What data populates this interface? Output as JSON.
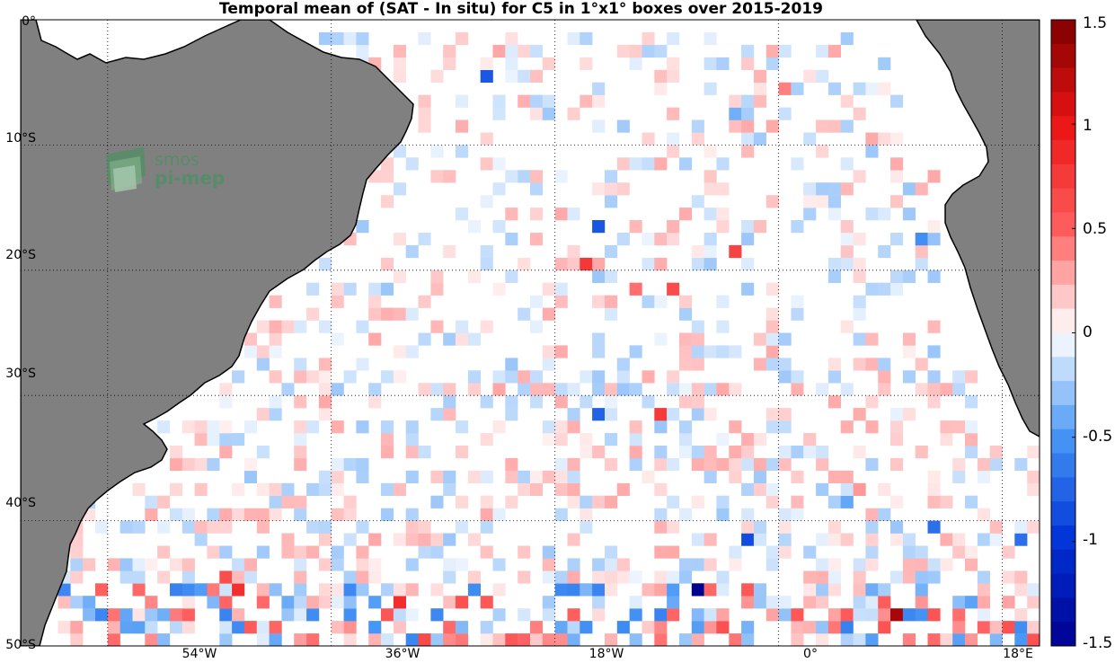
{
  "title": "Temporal mean of (SAT - In situ) for C5 in 1°x1° boxes over 2015-2019",
  "logo_text": [
    "smos",
    "pi-mep"
  ],
  "map": {
    "lon_range": [
      -61,
      21
    ],
    "lat_range": [
      -50,
      0
    ],
    "lat_ticks": [
      {
        "value": 0,
        "label": "0°"
      },
      {
        "value": -10,
        "label": "10°S"
      },
      {
        "value": -20,
        "label": "20°S"
      },
      {
        "value": -30,
        "label": "30°S"
      },
      {
        "value": -40,
        "label": "40°S"
      },
      {
        "value": -50,
        "label": "50°S"
      }
    ],
    "lon_ticks": [
      {
        "value": -54,
        "label": "54°W"
      },
      {
        "value": -36,
        "label": "36°W"
      },
      {
        "value": -18,
        "label": "18°W"
      },
      {
        "value": 0,
        "label": "0°"
      },
      {
        "value": 18,
        "label": "18°E"
      }
    ],
    "grid": "dotted",
    "land_color": "#808080",
    "ocean_color": "#ffffff"
  },
  "colorbar": {
    "min": -1.5,
    "max": 1.5,
    "ticks": [
      {
        "value": 1.5,
        "label": "1.5"
      },
      {
        "value": 1,
        "label": "1"
      },
      {
        "value": 0.5,
        "label": "0.5"
      },
      {
        "value": 0,
        "label": "0"
      },
      {
        "value": -0.5,
        "label": "-0.5"
      },
      {
        "value": -1,
        "label": "-1"
      },
      {
        "value": -1.5,
        "label": "-1.5"
      }
    ],
    "low_color": "#00008f",
    "mid_color": "#ffffff",
    "high_color": "#800000"
  }
}
